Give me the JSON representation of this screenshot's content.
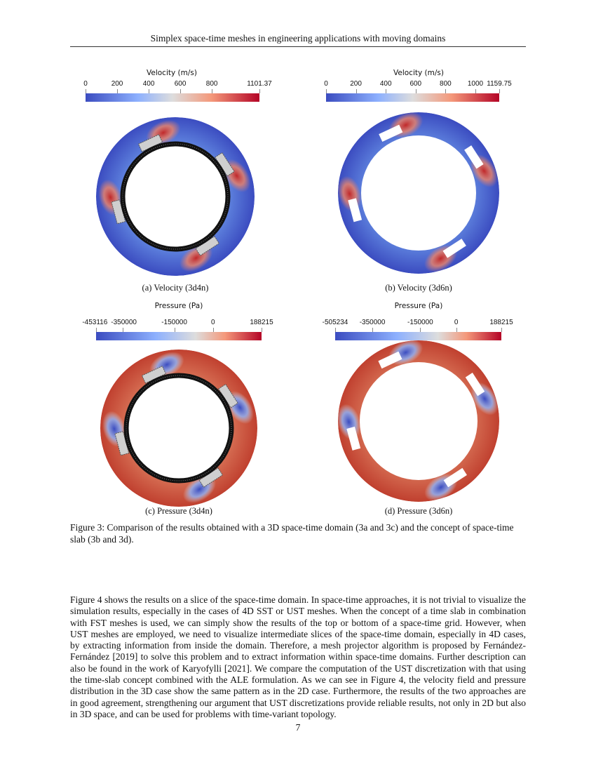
{
  "header": {
    "running_title": "Simplex space-time meshes in engineering applications with moving domains"
  },
  "figure": {
    "panels": [
      {
        "id": "a",
        "caption": "(a) Velocity (3d4n)",
        "field": "velocity",
        "colorbar": {
          "title": "Velocity (m/s)",
          "min": 0,
          "max": 1101.37,
          "ticks": [
            "0",
            "200",
            "400",
            "600",
            "800",
            "1101.37"
          ],
          "tick_values": [
            0,
            200,
            400,
            600,
            800,
            1101.37
          ]
        }
      },
      {
        "id": "b",
        "caption": "(b) Velocity (3d6n)",
        "field": "velocity",
        "colorbar": {
          "title": "Velocity (m/s)",
          "min": 0,
          "max": 1159.75,
          "ticks": [
            "0",
            "200",
            "400",
            "600",
            "800",
            "1000",
            "1159.75"
          ],
          "tick_values": [
            0,
            200,
            400,
            600,
            800,
            1000,
            1159.75
          ]
        }
      },
      {
        "id": "c",
        "caption": "(c) Pressure (3d4n)",
        "field": "pressure",
        "colorbar": {
          "title": "Pressure (Pa)",
          "min": -453116,
          "max": 188215,
          "ticks": [
            "-453116",
            "-350000",
            "-150000",
            "0",
            "188215"
          ],
          "tick_values": [
            -453116,
            -350000,
            -150000,
            0,
            188215
          ]
        }
      },
      {
        "id": "d",
        "caption": "(d) Pressure (3d6n)",
        "field": "pressure",
        "colorbar": {
          "title": "Pressure (Pa)",
          "min": -505234,
          "max": 188215,
          "ticks": [
            "-505234",
            "-350000",
            "-150000",
            "0",
            "188215"
          ],
          "tick_values": [
            -505234,
            -350000,
            -150000,
            0,
            188215
          ]
        }
      }
    ],
    "caption": "Figure 3: Comparison of the results obtained with a 3D space-time domain (3a and 3c) and the concept of space-time slab (3b and 3d).",
    "colormap": {
      "low": "#3b4cc0",
      "mid": "#dddddd",
      "high": "#b40426"
    }
  },
  "body": {
    "paragraph": "Figure 4 shows the results on a slice of the space-time domain. In space-time approaches, it is not trivial to visualize the simulation results, especially in the cases of 4D SST or UST meshes. When the concept of a time slab in combination with FST meshes is used, we can simply show the results of the top or bottom of a space-time grid. However, when UST meshes are employed, we need to visualize intermediate slices of the space-time domain, especially in 4D cases, by extracting information from inside the domain. Therefore, a mesh projector algorithm is proposed by Fernández-Fernández [2019] to solve this problem and to extract information within space-time domains. Further description can also be found in the work of Karyofylli [2021]. We compare the computation of the UST discretization with that using the time-slab concept combined with the ALE formulation. As we can see in Figure 4, the velocity field and pressure distribution in the 3D case show the same pattern as in the 2D case. Furthermore, the results of the two approaches are in good agreement, strengthening our argument that UST discretizations provide reliable results, not only in 2D but also in 3D space, and can be used for problems with time-variant topology."
  },
  "footer": {
    "page_number": "7"
  }
}
